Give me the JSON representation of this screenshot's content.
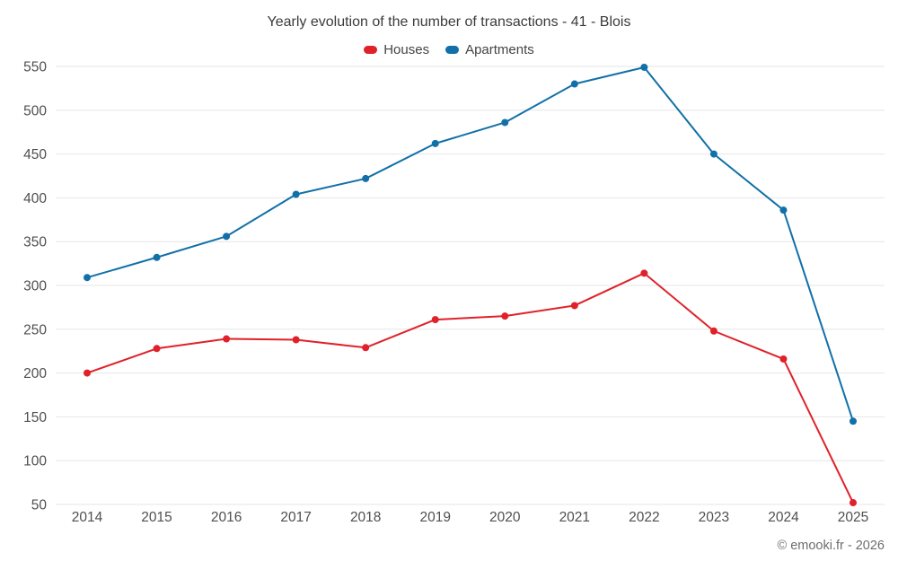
{
  "chart_data": {
    "type": "line",
    "title": "Yearly evolution of the number of transactions - 41 - Blois",
    "categories": [
      "2014",
      "2015",
      "2016",
      "2017",
      "2018",
      "2019",
      "2020",
      "2021",
      "2022",
      "2023",
      "2024",
      "2025"
    ],
    "series": [
      {
        "name": "Houses",
        "color": "#e02129",
        "values": [
          200,
          228,
          239,
          238,
          229,
          261,
          265,
          277,
          314,
          248,
          216,
          52
        ]
      },
      {
        "name": "Apartments",
        "color": "#1170a8",
        "values": [
          309,
          332,
          356,
          404,
          422,
          462,
          486,
          530,
          549,
          450,
          386,
          145
        ]
      }
    ],
    "ylim": [
      50,
      550
    ],
    "ytick_step": 50,
    "grid": true,
    "gridline_color": "#e6e6e6",
    "legend_position": "top",
    "marker": "circle"
  },
  "footer": {
    "copyright": "© emooki.fr - 2026"
  }
}
